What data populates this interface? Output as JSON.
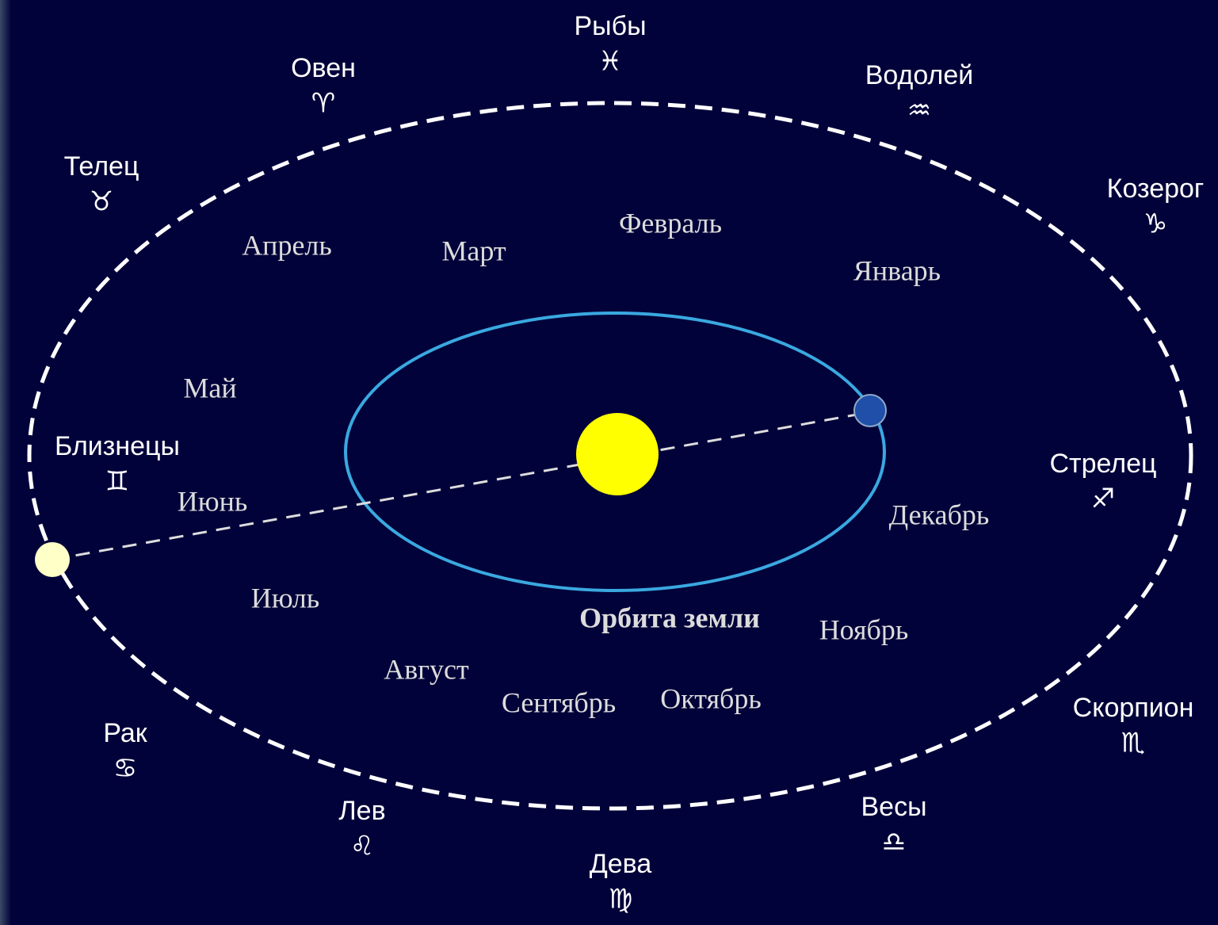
{
  "zodiac": [
    {
      "name": "Рыбы",
      "symbol": "♓"
    },
    {
      "name": "Овен",
      "symbol": "♈"
    },
    {
      "name": "Водолей",
      "symbol": "♒"
    },
    {
      "name": "Телец",
      "symbol": "♉"
    },
    {
      "name": "Козерог",
      "symbol": "♑"
    },
    {
      "name": "Близнецы",
      "symbol": "♊"
    },
    {
      "name": "Стрелец",
      "symbol": "♐"
    },
    {
      "name": "Рак",
      "symbol": "♋"
    },
    {
      "name": "Скорпион",
      "symbol": "♏"
    },
    {
      "name": "Лев",
      "symbol": "♌"
    },
    {
      "name": "Весы",
      "symbol": "♎"
    },
    {
      "name": "Дева",
      "symbol": "♍"
    }
  ],
  "months": [
    "Январь",
    "Февраль",
    "Март",
    "Апрель",
    "Май",
    "Июнь",
    "Июль",
    "Август",
    "Сентябрь",
    "Октябрь",
    "Ноябрь",
    "Декабрь"
  ],
  "orbit_label": "Орбита земли"
}
